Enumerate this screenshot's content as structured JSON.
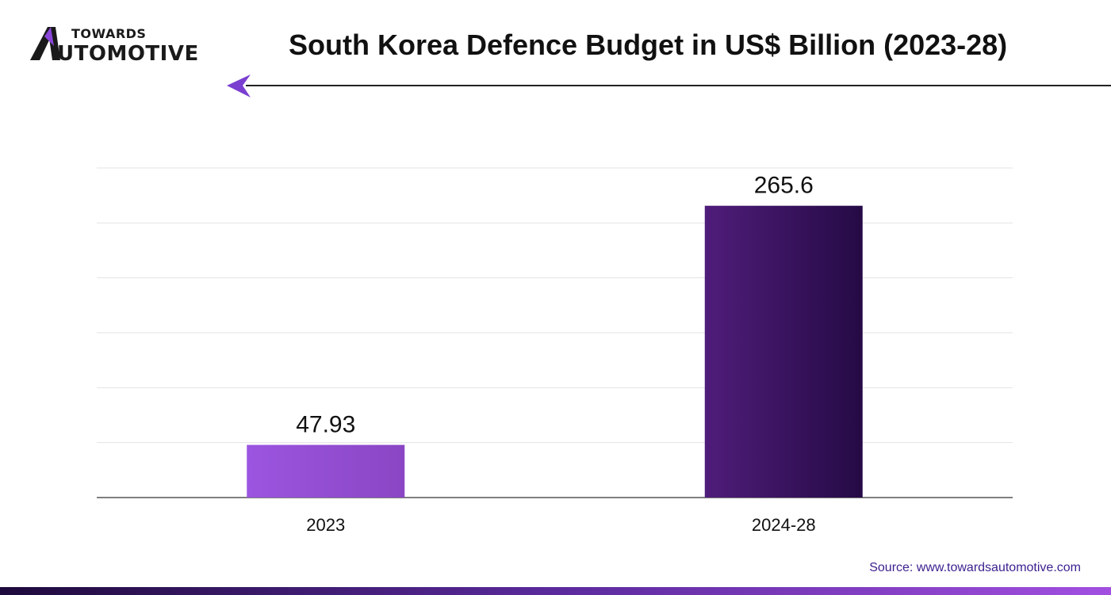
{
  "logo": {
    "top_text": "TOWARDS",
    "bottom_text": "UTOMOTIVE",
    "icon": "a-monogram-icon"
  },
  "header": {
    "title": "South Korea Defence Budget in US$ Billion (2023-28)",
    "arrow_icon": "left-arrow-icon"
  },
  "chart_data": {
    "type": "bar",
    "title": "South Korea Defence Budget in US$ Billion (2023-28)",
    "categories": [
      "2023",
      "2024-28"
    ],
    "values": [
      47.93,
      265.6
    ],
    "data_labels": [
      "47.93",
      "265.6"
    ],
    "xlabel": "",
    "ylabel": "",
    "ylim": [
      0,
      300
    ],
    "grid": true,
    "legend": "none",
    "colors": [
      [
        "#9b55e0",
        "#8a46c4"
      ],
      [
        "#4f1d7a",
        "#250a45"
      ]
    ]
  },
  "source": "Source: www.towardsautomotive.com",
  "colors": {
    "accent": "#7a3fd0",
    "footer_start": "#1e0a3c",
    "footer_end": "#a24fe0"
  }
}
